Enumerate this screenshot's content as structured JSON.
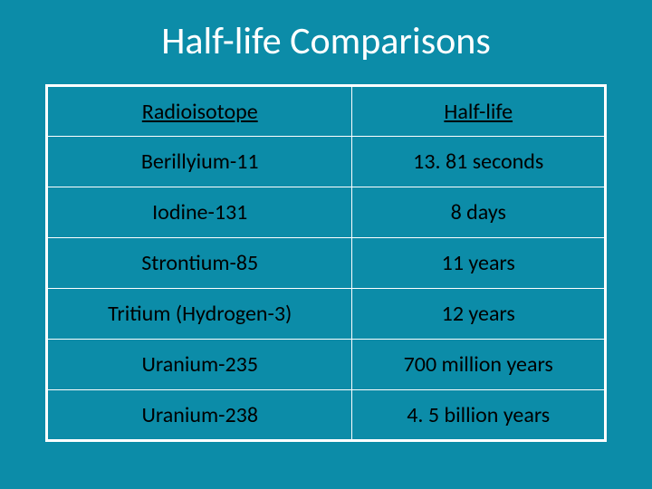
{
  "slide": {
    "title": "Half-life Comparisons",
    "background_color": "#0c8ca8",
    "title_color": "#ffffff",
    "title_fontsize": 42
  },
  "table": {
    "type": "table",
    "border_color": "#ffffff",
    "outer_border_width": 3,
    "inner_border_width": 1,
    "text_color": "#000000",
    "cell_fontsize": 24,
    "cell_padding": 12,
    "columns": [
      "Radioisotope",
      "Half-life"
    ],
    "column_widths": [
      "50%",
      "50%"
    ],
    "header_underline": true,
    "rows": [
      [
        "Berillyium-11",
        "13. 81 seconds"
      ],
      [
        "Iodine-131",
        "8 days"
      ],
      [
        "Strontium-85",
        "11 years"
      ],
      [
        "Tritium (Hydrogen-3)",
        "12 years"
      ],
      [
        "Uranium-235",
        "700 million years"
      ],
      [
        "Uranium-238",
        "4. 5 billion years"
      ]
    ]
  }
}
